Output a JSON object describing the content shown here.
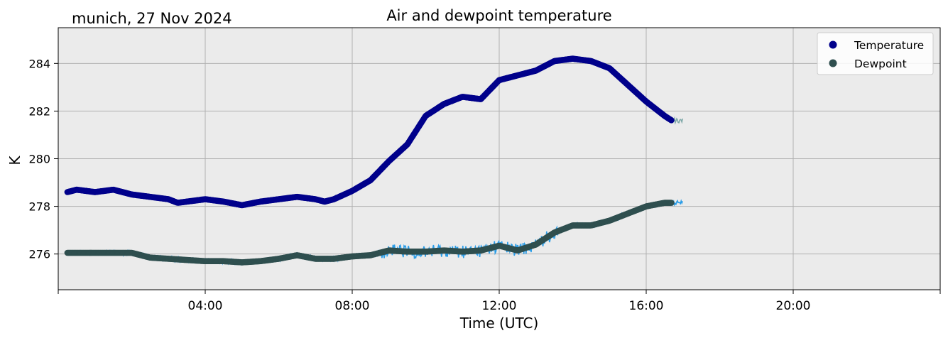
{
  "header": {
    "station_label": "munich, 27 Nov 2024"
  },
  "chart_data": {
    "type": "line",
    "title": "Air and dewpoint temperature",
    "xlabel": "Time (UTC)",
    "ylabel": "K",
    "x_unit": "hours (UTC)",
    "xlim": [
      0,
      24
    ],
    "ylim": [
      274.5,
      285.5
    ],
    "x_ticks": [
      {
        "value": 4,
        "label": "04:00"
      },
      {
        "value": 8,
        "label": "08:00"
      },
      {
        "value": 12,
        "label": "12:00"
      },
      {
        "value": 16,
        "label": "16:00"
      },
      {
        "value": 20,
        "label": "20:00"
      }
    ],
    "y_ticks": [
      {
        "value": 276,
        "label": "276"
      },
      {
        "value": 278,
        "label": "278"
      },
      {
        "value": 280,
        "label": "280"
      },
      {
        "value": 282,
        "label": "282"
      },
      {
        "value": 284,
        "label": "284"
      }
    ],
    "grid": true,
    "legend_position": "top-right",
    "series": [
      {
        "name": "Temperature",
        "marker_color": "#00008b",
        "raw_color": "#7fa9a9",
        "x": [
          0.25,
          0.5,
          1.0,
          1.5,
          2.0,
          2.5,
          3.0,
          3.25,
          3.5,
          4.0,
          4.5,
          5.0,
          5.5,
          6.0,
          6.5,
          7.0,
          7.25,
          7.5,
          8.0,
          8.5,
          9.0,
          9.5,
          10.0,
          10.5,
          11.0,
          11.5,
          12.0,
          12.5,
          13.0,
          13.5,
          14.0,
          14.5,
          15.0,
          15.5,
          16.0,
          16.5,
          16.7
        ],
        "values": [
          278.6,
          278.7,
          278.6,
          278.7,
          278.5,
          278.4,
          278.3,
          278.15,
          278.2,
          278.3,
          278.2,
          278.05,
          278.2,
          278.3,
          278.4,
          278.3,
          278.2,
          278.3,
          278.65,
          279.1,
          279.9,
          280.6,
          281.8,
          282.3,
          282.6,
          282.5,
          283.3,
          283.5,
          283.7,
          284.1,
          284.2,
          284.1,
          283.8,
          283.1,
          282.4,
          281.8,
          281.6
        ]
      },
      {
        "name": "Dewpoint",
        "marker_color": "#2f4f4f",
        "raw_color": "#2a9de8",
        "x": [
          0.25,
          1.0,
          2.0,
          2.5,
          3.0,
          3.5,
          4.0,
          4.5,
          5.0,
          5.5,
          6.0,
          6.5,
          7.0,
          7.5,
          8.0,
          8.5,
          9.0,
          9.5,
          10.0,
          10.5,
          11.0,
          11.5,
          12.0,
          12.5,
          13.0,
          13.5,
          14.0,
          14.5,
          15.0,
          15.5,
          16.0,
          16.5,
          16.7
        ],
        "values": [
          276.05,
          276.05,
          276.05,
          275.85,
          275.8,
          275.75,
          275.7,
          275.7,
          275.65,
          275.7,
          275.8,
          275.95,
          275.8,
          275.8,
          275.9,
          275.95,
          276.15,
          276.1,
          276.1,
          276.15,
          276.1,
          276.15,
          276.35,
          276.15,
          276.4,
          276.9,
          277.2,
          277.2,
          277.4,
          277.7,
          278.0,
          278.15,
          278.15
        ]
      }
    ]
  }
}
